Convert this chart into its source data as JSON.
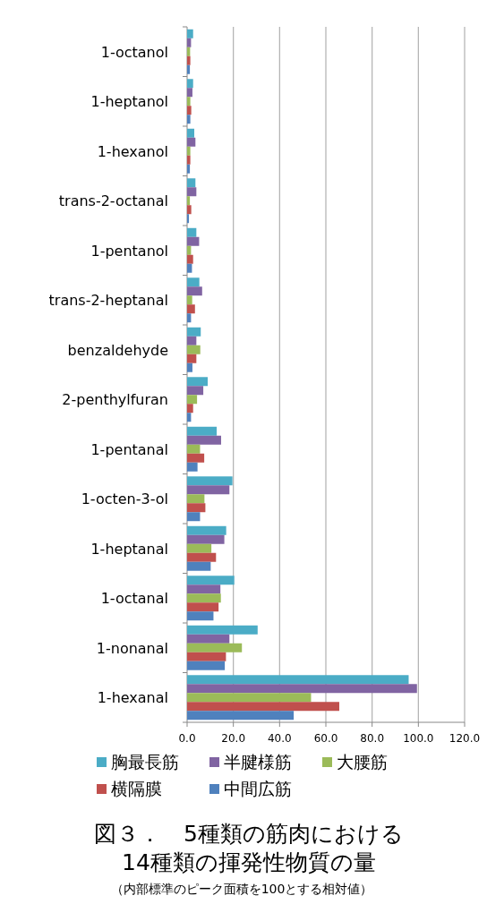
{
  "chart_data": {
    "type": "bar",
    "orientation": "horizontal",
    "title": "図３．　5種類の筋肉における\n14種類の揮発性物質の量",
    "subtitle": "（内部標準のピーク面積を100とする相対値）",
    "categories": [
      "1-octanol",
      "1-heptanol",
      "1-hexanol",
      "trans-2-octanal",
      "1-pentanol",
      "trans-2-heptanal",
      "benzaldehyde",
      "2-penthylfuran",
      "1-pentanal",
      "1-octen-3-ol",
      "1-heptanal",
      "1-octanal",
      "1-nonanal",
      "1-hexanal"
    ],
    "series": [
      {
        "name": "胸最長筋",
        "color": "#4bacc6",
        "values": [
          2.6,
          2.6,
          3.1,
          3.6,
          4.0,
          5.3,
          5.9,
          8.9,
          12.8,
          19.6,
          16.9,
          20.4,
          30.5,
          95.8
        ]
      },
      {
        "name": "半腱様筋",
        "color": "#8064a2",
        "values": [
          1.7,
          2.3,
          3.6,
          4.0,
          5.2,
          6.5,
          4.0,
          7.0,
          14.7,
          18.3,
          16.1,
          14.4,
          18.3,
          99.4
        ]
      },
      {
        "name": "大腰筋",
        "color": "#9bbb59",
        "values": [
          1.3,
          1.4,
          1.4,
          1.2,
          1.7,
          2.2,
          5.7,
          4.3,
          5.6,
          7.5,
          10.5,
          14.6,
          23.7,
          53.6
        ]
      },
      {
        "name": "横隔膜",
        "color": "#c0504d",
        "values": [
          1.4,
          1.8,
          1.4,
          1.8,
          2.6,
          3.4,
          4.0,
          2.6,
          7.4,
          7.9,
          12.5,
          13.6,
          16.8,
          65.8
        ]
      },
      {
        "name": "中間広筋",
        "color": "#4f81bd",
        "values": [
          1.2,
          1.4,
          1.2,
          0.8,
          2.1,
          1.7,
          2.3,
          1.7,
          4.5,
          5.6,
          10.2,
          11.4,
          16.3,
          46.1
        ]
      }
    ],
    "xlim": [
      0,
      120
    ],
    "xticks": [
      {
        "value": 0,
        "label": "0.0"
      },
      {
        "value": 20,
        "label": "20.0"
      },
      {
        "value": 40,
        "label": "40.0"
      },
      {
        "value": 60,
        "label": "60.0"
      },
      {
        "value": 80,
        "label": "80.0"
      },
      {
        "value": 100,
        "label": "100.0"
      },
      {
        "value": 120,
        "label": "120.0"
      }
    ],
    "grid": "x",
    "legend": "bottom"
  }
}
